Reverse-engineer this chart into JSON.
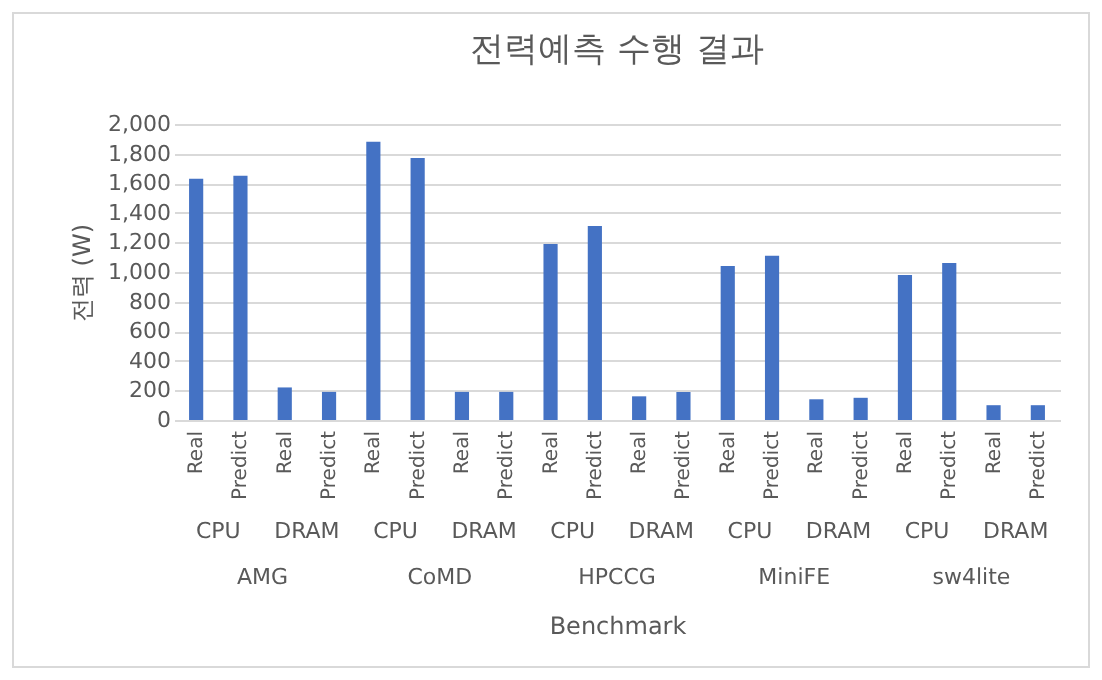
{
  "chart_data": {
    "type": "bar",
    "title": "전력예측 수행 결과",
    "xlabel": "Benchmark",
    "ylabel": "전력 (W)",
    "categories": [
      "Real",
      "Predict",
      "Real",
      "Predict",
      "Real",
      "Predict",
      "Real",
      "Predict",
      "Real",
      "Predict",
      "Real",
      "Predict",
      "Real",
      "Predict",
      "Real",
      "Predict",
      "Real",
      "Predict",
      "Real",
      "Predict"
    ],
    "values": [
      1630,
      1650,
      220,
      190,
      1880,
      1770,
      190,
      190,
      1190,
      1310,
      160,
      190,
      1040,
      1110,
      140,
      150,
      980,
      1060,
      100,
      100
    ],
    "color": "#4472c4",
    "annotations": [
      "CPU",
      "DRAM",
      "CPU",
      "DRAM",
      "CPU",
      "DRAM",
      "CPU",
      "DRAM",
      "CPU",
      "DRAM",
      "AMG",
      "CoMD",
      "HPCCG",
      "MiniFE",
      "sw4lite"
    ],
    "ylim": [
      0,
      2000
    ],
    "yticks": [
      0,
      200,
      400,
      600,
      800,
      {
        "value": 1000,
        "label": "1,000"
      },
      {
        "value": 1200,
        "label": "1,200"
      },
      {
        "value": 1400,
        "label": "1,400"
      },
      {
        "value": 1600,
        "label": "1,600"
      },
      {
        "value": 1800,
        "label": "1,800"
      },
      {
        "value": 2000,
        "label": "2,000"
      }
    ],
    "grid": "y"
  }
}
